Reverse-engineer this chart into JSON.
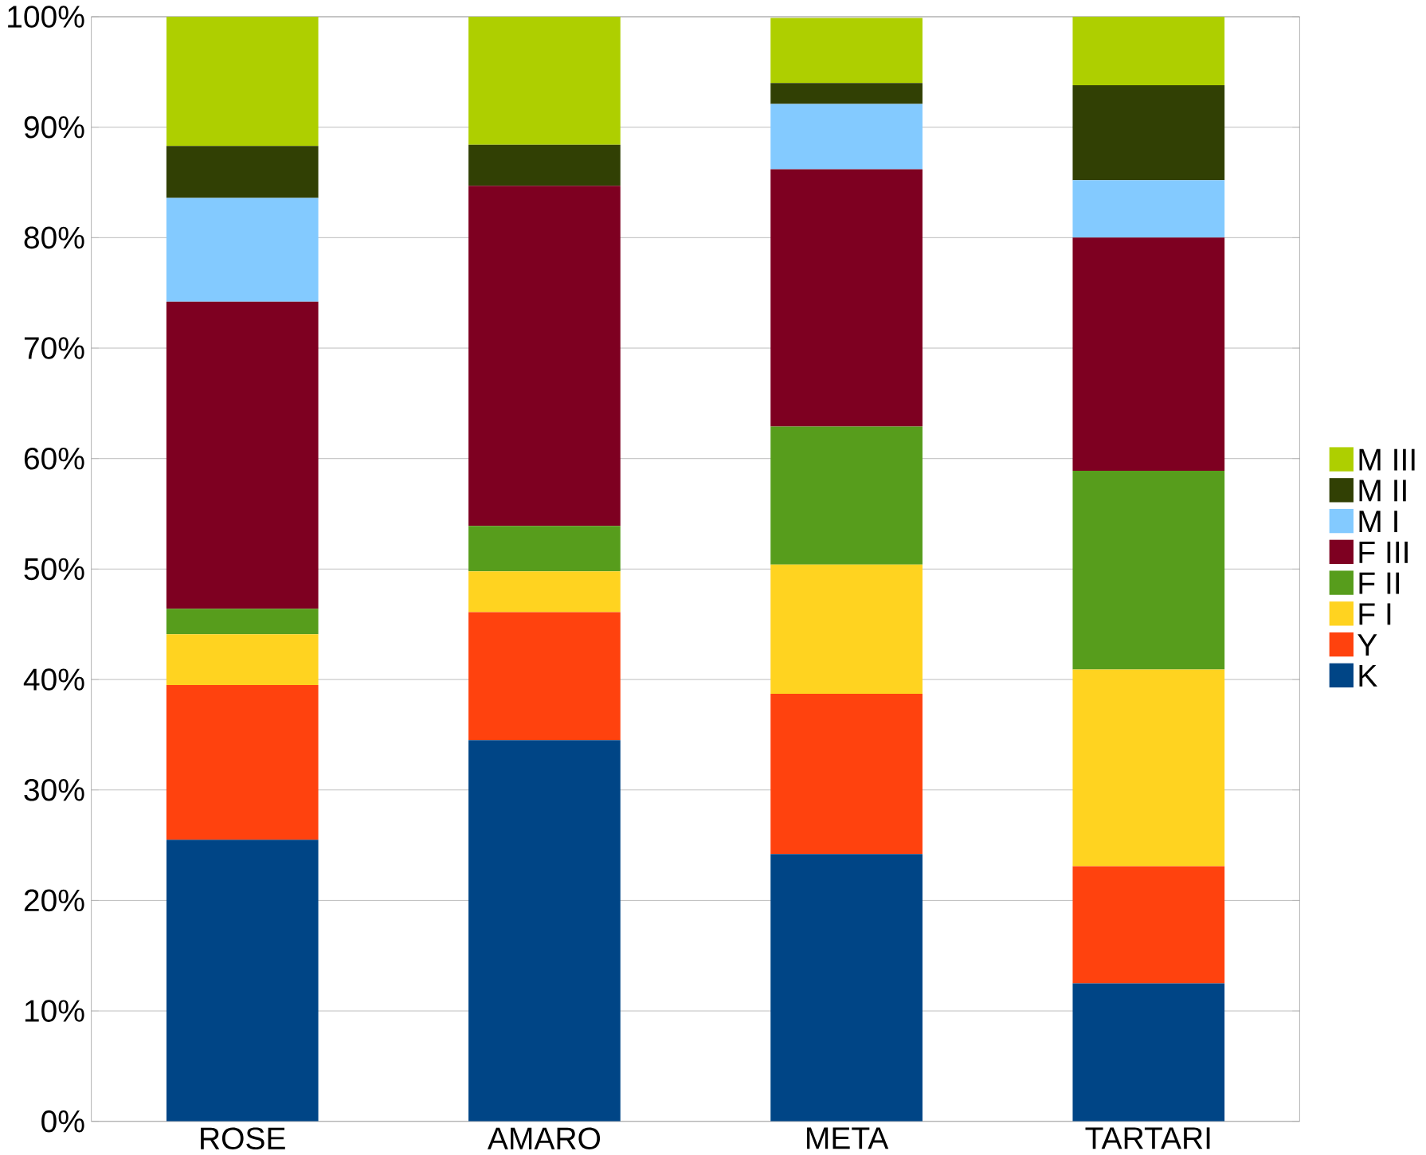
{
  "chart_data": {
    "type": "bar",
    "stacked": true,
    "categories": [
      "ROSE",
      "AMARO",
      "META",
      "TARTARI"
    ],
    "series": [
      {
        "name": "K",
        "color": "#004586",
        "values": [
          25.5,
          34.5,
          24.2,
          12.5
        ]
      },
      {
        "name": "Y",
        "color": "#ff420e",
        "values": [
          14.0,
          11.6,
          14.5,
          10.6
        ]
      },
      {
        "name": "F I",
        "color": "#ffd320",
        "values": [
          4.6,
          3.7,
          11.7,
          17.8
        ]
      },
      {
        "name": "F II",
        "color": "#579d1c",
        "values": [
          2.3,
          4.1,
          12.5,
          18.0
        ]
      },
      {
        "name": "F III",
        "color": "#7e0021",
        "values": [
          27.8,
          30.8,
          23.3,
          21.1
        ]
      },
      {
        "name": "M I",
        "color": "#83caff",
        "values": [
          9.4,
          0,
          5.9,
          5.2
        ]
      },
      {
        "name": "M II",
        "color": "#314004",
        "values": [
          4.7,
          3.7,
          1.9,
          8.6
        ]
      },
      {
        "name": "M III",
        "color": "#aecf00",
        "values": [
          11.7,
          11.6,
          5.9,
          6.2
        ]
      }
    ],
    "ylim": [
      0,
      100
    ],
    "yticks": [
      {
        "value": 0,
        "label": "0%"
      },
      {
        "value": 10,
        "label": "10%"
      },
      {
        "value": 20,
        "label": "20%"
      },
      {
        "value": 30,
        "label": "30%"
      },
      {
        "value": 40,
        "label": "40%"
      },
      {
        "value": 50,
        "label": "50%"
      },
      {
        "value": 60,
        "label": "60%"
      },
      {
        "value": 70,
        "label": "70%"
      },
      {
        "value": 80,
        "label": "80%"
      },
      {
        "value": 90,
        "label": "90%"
      },
      {
        "value": 100,
        "label": "100%"
      }
    ],
    "grid": "y",
    "legend": "right"
  }
}
